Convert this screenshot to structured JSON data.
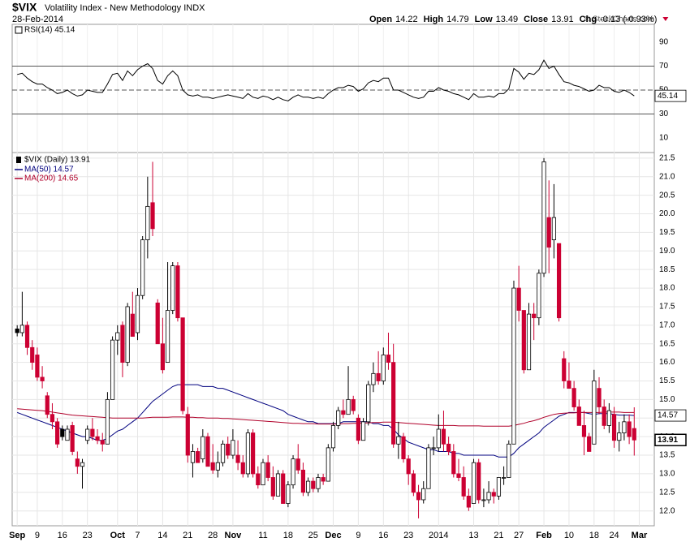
{
  "chart_data": {
    "type": "candlestick",
    "title": "$VIX",
    "subtitle": "Volatility Index - New Methodology INDX",
    "date": "28-Feb-2014",
    "credit": "© StockCharts.com",
    "quote_labels": [
      "Open",
      "High",
      "Low",
      "Close",
      "Chg"
    ],
    "change": "-0.13 (-0.93%)",
    "price_label": "$VIX (Daily) 13.91",
    "up_color": "#000000",
    "down_color": "#cc0033",
    "ohlc": [
      [
        16.9,
        17.0,
        16.7,
        16.8
      ],
      [
        16.8,
        17.9,
        16.7,
        17.0
      ],
      [
        17.0,
        17.1,
        16.2,
        16.4
      ],
      [
        16.4,
        16.6,
        15.8,
        16.0
      ],
      [
        16.2,
        16.4,
        15.5,
        15.6
      ],
      [
        15.6,
        15.9,
        15.3,
        15.5
      ],
      [
        15.1,
        15.2,
        14.5,
        14.6
      ],
      [
        14.6,
        14.9,
        14.2,
        14.4
      ],
      [
        14.4,
        14.5,
        13.7,
        13.8
      ],
      [
        14.2,
        14.3,
        13.9,
        14.0
      ],
      [
        13.9,
        14.3,
        13.9,
        14.2
      ],
      [
        14.3,
        14.4,
        13.5,
        13.6
      ],
      [
        13.4,
        13.6,
        13.0,
        13.2
      ],
      [
        13.2,
        13.4,
        12.6,
        13.3
      ],
      [
        13.9,
        14.3,
        13.8,
        14.2
      ],
      [
        14.2,
        14.5,
        13.9,
        14.0
      ],
      [
        14.0,
        14.2,
        13.8,
        13.9
      ],
      [
        13.9,
        14.1,
        13.6,
        13.8
      ],
      [
        13.8,
        15.2,
        13.8,
        15.0
      ],
      [
        15.0,
        16.7,
        15.0,
        16.6
      ],
      [
        16.6,
        17.0,
        16.2,
        16.8
      ],
      [
        17.0,
        17.1,
        15.6,
        16.0
      ],
      [
        16.0,
        17.6,
        15.9,
        17.5
      ],
      [
        17.3,
        17.9,
        16.7,
        16.7
      ],
      [
        16.8,
        18.0,
        16.6,
        17.8
      ],
      [
        17.8,
        19.4,
        17.7,
        19.3
      ],
      [
        19.3,
        21.0,
        18.8,
        20.2
      ],
      [
        20.3,
        21.4,
        19.4,
        19.6
      ],
      [
        17.6,
        17.7,
        16.5,
        16.5
      ],
      [
        16.5,
        17.2,
        15.7,
        15.8
      ],
      [
        16.0,
        18.7,
        16.0,
        17.4
      ],
      [
        17.4,
        18.7,
        17.3,
        18.6
      ],
      [
        18.6,
        18.7,
        17.1,
        17.2
      ],
      [
        17.2,
        17.2,
        14.6,
        14.7
      ],
      [
        14.6,
        14.8,
        13.3,
        13.5
      ],
      [
        13.3,
        13.8,
        12.9,
        13.6
      ],
      [
        13.6,
        13.7,
        13.3,
        13.3
      ],
      [
        13.4,
        14.2,
        13.3,
        14.0
      ],
      [
        14.0,
        14.1,
        13.2,
        13.2
      ],
      [
        13.3,
        13.8,
        13.0,
        13.1
      ],
      [
        13.1,
        13.6,
        12.9,
        13.3
      ],
      [
        13.3,
        13.9,
        13.2,
        13.8
      ],
      [
        13.8,
        14.0,
        13.4,
        13.5
      ],
      [
        13.5,
        14.2,
        13.4,
        13.9
      ],
      [
        13.5,
        13.9,
        13.1,
        13.3
      ],
      [
        13.3,
        13.5,
        12.9,
        13.0
      ],
      [
        13.0,
        14.2,
        12.9,
        14.1
      ],
      [
        14.1,
        14.2,
        12.9,
        13.0
      ],
      [
        13.0,
        13.2,
        12.6,
        12.7
      ],
      [
        12.7,
        13.4,
        12.7,
        13.3
      ],
      [
        13.3,
        13.5,
        12.8,
        12.9
      ],
      [
        12.9,
        13.2,
        12.3,
        12.4
      ],
      [
        12.4,
        13.1,
        12.4,
        13.0
      ],
      [
        13.0,
        13.1,
        12.2,
        12.2
      ],
      [
        12.2,
        12.8,
        12.1,
        12.7
      ],
      [
        12.7,
        13.5,
        12.6,
        13.4
      ],
      [
        13.4,
        13.8,
        13.0,
        13.1
      ],
      [
        13.1,
        13.3,
        12.4,
        12.5
      ],
      [
        12.5,
        12.9,
        12.4,
        12.8
      ],
      [
        12.8,
        12.9,
        12.5,
        12.6
      ],
      [
        12.6,
        13.0,
        12.5,
        12.9
      ],
      [
        12.9,
        13.0,
        12.7,
        12.8
      ],
      [
        12.8,
        13.8,
        12.8,
        13.7
      ],
      [
        13.7,
        14.4,
        13.6,
        14.3
      ],
      [
        14.3,
        14.8,
        14.2,
        14.7
      ],
      [
        14.7,
        15.0,
        14.5,
        14.6
      ],
      [
        14.6,
        15.9,
        14.6,
        15.0
      ],
      [
        15.0,
        15.1,
        14.6,
        14.7
      ],
      [
        14.5,
        14.6,
        13.8,
        13.9
      ],
      [
        13.9,
        14.5,
        13.9,
        14.4
      ],
      [
        14.4,
        15.5,
        14.3,
        15.4
      ],
      [
        15.4,
        16.0,
        15.2,
        15.7
      ],
      [
        15.7,
        16.3,
        15.4,
        15.5
      ],
      [
        15.5,
        16.4,
        15.4,
        16.2
      ],
      [
        16.2,
        16.8,
        15.8,
        16.0
      ],
      [
        16.0,
        16.5,
        13.7,
        13.8
      ],
      [
        13.8,
        14.4,
        13.4,
        14.0
      ],
      [
        14.0,
        14.1,
        13.3,
        13.4
      ],
      [
        13.4,
        13.5,
        12.7,
        13.0
      ],
      [
        13.0,
        13.1,
        12.4,
        12.5
      ],
      [
        12.5,
        12.7,
        11.8,
        12.3
      ],
      [
        12.3,
        12.8,
        12.2,
        12.6
      ],
      [
        12.6,
        13.8,
        12.6,
        13.7
      ],
      [
        13.7,
        14.0,
        13.5,
        13.7
      ],
      [
        13.7,
        14.6,
        13.6,
        14.2
      ],
      [
        14.2,
        14.7,
        13.6,
        13.8
      ],
      [
        13.8,
        14.0,
        13.5,
        13.6
      ],
      [
        13.6,
        13.8,
        12.9,
        13.0
      ],
      [
        13.0,
        13.4,
        12.8,
        12.9
      ],
      [
        12.9,
        13.2,
        12.3,
        12.4
      ],
      [
        12.4,
        12.6,
        12.0,
        12.1
      ],
      [
        12.2,
        13.4,
        12.2,
        13.3
      ],
      [
        13.3,
        13.4,
        12.2,
        12.3
      ],
      [
        12.3,
        12.6,
        12.1,
        12.3
      ],
      [
        12.3,
        12.8,
        12.2,
        12.5
      ],
      [
        12.5,
        12.6,
        12.2,
        12.4
      ],
      [
        12.4,
        12.9,
        12.3,
        12.9
      ],
      [
        12.9,
        13.2,
        12.7,
        12.9
      ],
      [
        12.9,
        13.9,
        12.9,
        13.8
      ],
      [
        13.8,
        18.2,
        13.8,
        18.0
      ],
      [
        18.0,
        18.6,
        17.1,
        17.4
      ],
      [
        17.4,
        17.4,
        15.7,
        15.8
      ],
      [
        15.8,
        17.6,
        15.8,
        17.3
      ],
      [
        17.3,
        17.6,
        16.6,
        17.2
      ],
      [
        17.2,
        18.5,
        17.0,
        18.4
      ],
      [
        18.4,
        21.5,
        18.3,
        21.4
      ],
      [
        19.9,
        20.9,
        18.4,
        19.1
      ],
      [
        19.3,
        20.8,
        18.8,
        19.9
      ],
      [
        19.2,
        19.2,
        17.1,
        17.2
      ],
      [
        16.1,
        16.3,
        15.3,
        15.5
      ],
      [
        15.5,
        16.0,
        15.3,
        15.3
      ],
      [
        15.3,
        15.5,
        14.7,
        14.8
      ],
      [
        14.8,
        15.0,
        14.3,
        14.3
      ],
      [
        14.3,
        14.7,
        13.5,
        14.0
      ],
      [
        14.0,
        14.1,
        13.6,
        13.6
      ],
      [
        13.8,
        15.8,
        13.8,
        15.5
      ],
      [
        15.3,
        15.6,
        14.6,
        14.8
      ],
      [
        14.8,
        15.0,
        14.2,
        14.3
      ],
      [
        14.3,
        14.9,
        14.1,
        14.7
      ],
      [
        14.6,
        14.8,
        13.7,
        13.9
      ],
      [
        13.9,
        14.4,
        13.6,
        14.1
      ],
      [
        14.1,
        14.6,
        13.9,
        14.4
      ],
      [
        14.4,
        14.6,
        13.8,
        14.0
      ],
      [
        14.22,
        14.79,
        13.49,
        13.91
      ]
    ],
    "series": [
      {
        "name": "MA(50) 14.57",
        "color": "#00007f",
        "values": [
          14.65,
          14.6,
          14.55,
          14.5,
          14.45,
          14.4,
          14.35,
          14.3,
          14.25,
          14.2,
          14.15,
          14.1,
          14.05,
          14.0,
          14.0,
          13.95,
          13.9,
          13.9,
          13.95,
          14.05,
          14.15,
          14.2,
          14.3,
          14.4,
          14.5,
          14.65,
          14.8,
          14.95,
          15.05,
          15.15,
          15.25,
          15.35,
          15.4,
          15.4,
          15.4,
          15.4,
          15.4,
          15.35,
          15.35,
          15.35,
          15.3,
          15.3,
          15.25,
          15.2,
          15.15,
          15.1,
          15.05,
          15.0,
          14.95,
          14.9,
          14.85,
          14.8,
          14.75,
          14.7,
          14.6,
          14.55,
          14.5,
          14.45,
          14.4,
          14.4,
          14.35,
          14.35,
          14.35,
          14.35,
          14.35,
          14.4,
          14.4,
          14.4,
          14.4,
          14.4,
          14.4,
          14.35,
          14.35,
          14.3,
          14.3,
          14.2,
          14.05,
          13.95,
          13.85,
          13.8,
          13.75,
          13.7,
          13.65,
          13.65,
          13.6,
          13.6,
          13.6,
          13.55,
          13.55,
          13.5,
          13.5,
          13.5,
          13.5,
          13.5,
          13.5,
          13.5,
          13.45,
          13.45,
          13.45,
          13.55,
          13.7,
          13.8,
          13.9,
          14.0,
          14.1,
          14.25,
          14.35,
          14.45,
          14.55,
          14.6,
          14.65,
          14.65,
          14.65,
          14.65,
          14.62,
          14.6,
          14.62,
          14.62,
          14.62,
          14.6,
          14.58,
          14.58,
          14.58,
          14.57
        ]
      },
      {
        "name": "MA(200) 14.65",
        "color": "#b0002a",
        "values": [
          14.75,
          14.74,
          14.73,
          14.72,
          14.71,
          14.7,
          14.68,
          14.66,
          14.64,
          14.62,
          14.6,
          14.58,
          14.57,
          14.56,
          14.55,
          14.54,
          14.53,
          14.52,
          14.51,
          14.5,
          14.5,
          14.5,
          14.5,
          14.5,
          14.5,
          14.5,
          14.51,
          14.52,
          14.52,
          14.52,
          14.52,
          14.53,
          14.53,
          14.53,
          14.52,
          14.52,
          14.51,
          14.51,
          14.5,
          14.5,
          14.5,
          14.49,
          14.49,
          14.48,
          14.47,
          14.46,
          14.45,
          14.44,
          14.43,
          14.42,
          14.41,
          14.4,
          14.39,
          14.38,
          14.37,
          14.36,
          14.36,
          14.35,
          14.35,
          14.35,
          14.34,
          14.34,
          14.34,
          14.34,
          14.34,
          14.35,
          14.35,
          14.36,
          14.36,
          14.37,
          14.37,
          14.38,
          14.38,
          14.39,
          14.39,
          14.39,
          14.38,
          14.37,
          14.36,
          14.35,
          14.34,
          14.33,
          14.32,
          14.31,
          14.3,
          14.3,
          14.3,
          14.3,
          14.29,
          14.29,
          14.29,
          14.29,
          14.29,
          14.28,
          14.28,
          14.28,
          14.28,
          14.28,
          14.28,
          14.3,
          14.33,
          14.36,
          14.4,
          14.43,
          14.47,
          14.52,
          14.56,
          14.6,
          14.62,
          14.63,
          14.64,
          14.64,
          14.65,
          14.65,
          14.65,
          14.65,
          14.65,
          14.66,
          14.66,
          14.66,
          14.66,
          14.65,
          14.65,
          14.65
        ]
      }
    ],
    "rsi": {
      "name": "RSI(14) 45.14",
      "color": "#000000",
      "values": [
        63,
        64,
        60,
        57,
        55,
        55,
        52,
        50,
        47,
        48,
        50,
        47,
        45,
        46,
        50,
        49,
        48,
        48,
        55,
        63,
        64,
        58,
        66,
        62,
        67,
        70,
        72,
        68,
        58,
        55,
        62,
        66,
        62,
        50,
        46,
        45,
        46,
        44,
        44,
        43,
        44,
        45,
        46,
        45,
        44,
        43,
        47,
        44,
        43,
        45,
        44,
        42,
        44,
        42,
        41,
        44,
        46,
        44,
        44,
        43,
        44,
        43,
        47,
        50,
        52,
        52,
        54,
        53,
        49,
        51,
        56,
        58,
        57,
        60,
        60,
        50,
        50,
        48,
        46,
        44,
        43,
        44,
        49,
        49,
        52,
        50,
        49,
        47,
        46,
        44,
        42,
        47,
        44,
        44,
        45,
        44,
        47,
        47,
        51,
        68,
        65,
        59,
        64,
        63,
        67,
        75,
        68,
        70,
        63,
        57,
        56,
        54,
        53,
        51,
        49,
        50,
        54,
        52,
        52,
        49,
        48,
        50,
        48,
        45.14
      ],
      "ylim": [
        -2.2,
        104.9
      ],
      "yticks": [
        10,
        30,
        50,
        70,
        90
      ],
      "levels": [
        30,
        50,
        70
      ]
    },
    "xlim": [
      -1,
      127
    ],
    "xticks": [
      {
        "value": 0,
        "label": "Sep"
      },
      {
        "value": 4,
        "label": "9"
      },
      {
        "value": 9,
        "label": "16"
      },
      {
        "value": 14,
        "label": "23"
      },
      {
        "value": 20,
        "label": "Oct"
      },
      {
        "value": 24,
        "label": "7"
      },
      {
        "value": 29,
        "label": "14"
      },
      {
        "value": 34,
        "label": "21"
      },
      {
        "value": 39,
        "label": "28"
      },
      {
        "value": 43,
        "label": "Nov"
      },
      {
        "value": 49,
        "label": "11"
      },
      {
        "value": 54,
        "label": "18"
      },
      {
        "value": 59,
        "label": "25"
      },
      {
        "value": 63,
        "label": "Dec"
      },
      {
        "value": 68,
        "label": "9"
      },
      {
        "value": 73,
        "label": "16"
      },
      {
        "value": 78,
        "label": "23"
      },
      {
        "value": 84,
        "label": "2014"
      },
      {
        "value": 91,
        "label": "13"
      },
      {
        "value": 96,
        "label": "21"
      },
      {
        "value": 100,
        "label": "27"
      },
      {
        "value": 105,
        "label": "Feb"
      },
      {
        "value": 110,
        "label": "10"
      },
      {
        "value": 115,
        "label": "18"
      },
      {
        "value": 119,
        "label": "24"
      },
      {
        "value": 124,
        "label": "Mar"
      }
    ],
    "ylim": [
      11.6,
      21.65
    ],
    "yticks": [
      {
        "value": 12,
        "label": "12.0"
      },
      12.5,
      {
        "value": 13,
        "label": "13.0"
      },
      13.5,
      {
        "value": 14,
        "label": "14.0"
      },
      14.5,
      {
        "value": 15,
        "label": "15.0"
      },
      15.5,
      {
        "value": 16,
        "label": "16.0"
      },
      16.5,
      {
        "value": 17,
        "label": "17.0"
      },
      17.5,
      {
        "value": 18,
        "label": "18.0"
      },
      18.5,
      {
        "value": 19,
        "label": "19.0"
      },
      19.5,
      {
        "value": 20,
        "label": "20.0"
      },
      20.5,
      {
        "value": 21,
        "label": "21.0"
      },
      21.5
    ],
    "grid": true
  }
}
